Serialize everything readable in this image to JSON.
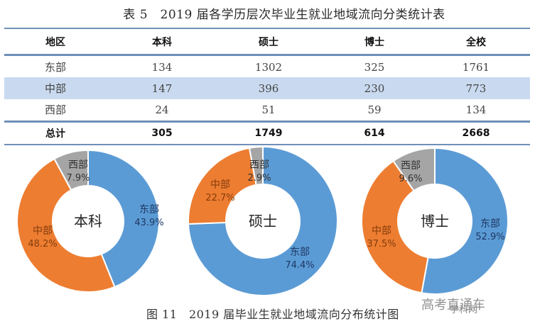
{
  "table": {
    "title": "表 5　2019 届各学历层次毕业生就业地域流向分类统计表",
    "headers": [
      "地区",
      "本科",
      "硕士",
      "博士",
      "全校"
    ],
    "rows": [
      [
        "东部",
        "134",
        "1302",
        "325",
        "1761"
      ],
      [
        "中部",
        "147",
        "396",
        "230",
        "773"
      ],
      [
        "西部",
        "24",
        "51",
        "59",
        "134"
      ]
    ],
    "total": [
      "总计",
      "305",
      "1749",
      "614",
      "2668"
    ],
    "colors": {
      "rule": "#6f8fb8",
      "alt_row": "#c9daf0"
    }
  },
  "chart_data": [
    {
      "type": "pie",
      "style": "donut",
      "center_label": "本科",
      "labels": [
        "东部",
        "中部",
        "西部"
      ],
      "values": [
        43.9,
        48.2,
        7.9
      ],
      "value_labels": [
        "43.9%",
        "48.2%",
        "7.9%"
      ],
      "colors": [
        "#5b9bd5",
        "#ed7d31",
        "#a5a5a5"
      ]
    },
    {
      "type": "pie",
      "style": "donut",
      "center_label": "硕士",
      "labels": [
        "东部",
        "中部",
        "西部"
      ],
      "values": [
        74.4,
        22.7,
        2.9
      ],
      "value_labels": [
        "74.4%",
        "22.7%",
        "2.9%"
      ],
      "colors": [
        "#5b9bd5",
        "#ed7d31",
        "#a5a5a5"
      ]
    },
    {
      "type": "pie",
      "style": "donut",
      "center_label": "博士",
      "labels": [
        "东部",
        "中部",
        "西部"
      ],
      "values": [
        52.9,
        37.5,
        9.6
      ],
      "value_labels": [
        "52.9%",
        "37.5%",
        "9.6%"
      ],
      "colors": [
        "#5b9bd5",
        "#ed7d31",
        "#a5a5a5"
      ]
    }
  ],
  "caption": "图 11　2019 届毕业生就业地域流向分布统计图",
  "watermark": {
    "main": "高考直通车",
    "sub": "学科网"
  }
}
